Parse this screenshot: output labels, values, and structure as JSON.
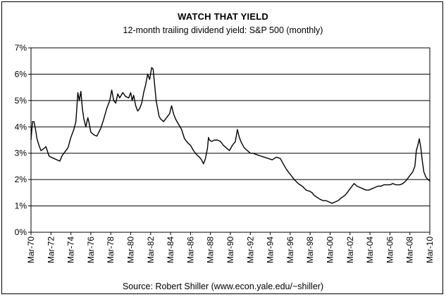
{
  "chart_data": {
    "type": "line",
    "title": "WATCH THAT YIELD",
    "subtitle": "12-month trailing dividend yield: S&P 500 (monthly)",
    "source": "Source: Robert Shiller (www.econ.yale.edu/~shiller)",
    "xlabel": "",
    "ylabel": "",
    "ylim": [
      0,
      7
    ],
    "xlim": [
      1970,
      2010
    ],
    "y_ticks": [
      {
        "value": 0,
        "label": "0%"
      },
      {
        "value": 1,
        "label": "1%"
      },
      {
        "value": 2,
        "label": "2%"
      },
      {
        "value": 3,
        "label": "3%"
      },
      {
        "value": 4,
        "label": "4%"
      },
      {
        "value": 5,
        "label": "5%"
      },
      {
        "value": 6,
        "label": "6%"
      },
      {
        "value": 7,
        "label": "7%"
      }
    ],
    "x_ticks": [
      {
        "value": 1970,
        "label": "Mar-70"
      },
      {
        "value": 1972,
        "label": "Mar-72"
      },
      {
        "value": 1974,
        "label": "Mar-74"
      },
      {
        "value": 1976,
        "label": "Mar-76"
      },
      {
        "value": 1978,
        "label": "Mar-78"
      },
      {
        "value": 1980,
        "label": "Mar-80"
      },
      {
        "value": 1982,
        "label": "Mar-82"
      },
      {
        "value": 1984,
        "label": "Mar-84"
      },
      {
        "value": 1986,
        "label": "Mar-86"
      },
      {
        "value": 1988,
        "label": "Mar-88"
      },
      {
        "value": 1990,
        "label": "Mar-90"
      },
      {
        "value": 1992,
        "label": "Mar-92"
      },
      {
        "value": 1994,
        "label": "Mar-94"
      },
      {
        "value": 1996,
        "label": "Mar-96"
      },
      {
        "value": 1998,
        "label": "Mar-98"
      },
      {
        "value": 2000,
        "label": "Mar-00"
      },
      {
        "value": 2002,
        "label": "Mar-02"
      },
      {
        "value": 2004,
        "label": "Mar-04"
      },
      {
        "value": 2006,
        "label": "Mar-06"
      },
      {
        "value": 2008,
        "label": "Mar-08"
      },
      {
        "value": 2010,
        "label": "Mar-10"
      }
    ],
    "grid": "horizontal",
    "line_color": "#000000",
    "series": [
      {
        "x": [
          1970.0,
          1970.15,
          1970.3,
          1970.45,
          1970.6,
          1970.8,
          1971.0,
          1971.2,
          1971.5,
          1971.8,
          1972.0,
          1972.3,
          1972.6,
          1972.9,
          1973.1,
          1973.4,
          1973.7,
          1974.0,
          1974.3,
          1974.5,
          1974.7,
          1974.85,
          1975.0,
          1975.15,
          1975.3,
          1975.5,
          1975.7,
          1975.85,
          1976.0,
          1976.3,
          1976.6,
          1977.0,
          1977.3,
          1977.6,
          1977.9,
          1978.1,
          1978.3,
          1978.5,
          1978.7,
          1978.9,
          1979.2,
          1979.5,
          1979.8,
          1980.0,
          1980.15,
          1980.3,
          1980.5,
          1980.7,
          1980.9,
          1981.1,
          1981.3,
          1981.5,
          1981.7,
          1981.9,
          1982.1,
          1982.25,
          1982.4,
          1982.55,
          1982.7,
          1982.85,
          1983.0,
          1983.3,
          1983.6,
          1983.9,
          1984.1,
          1984.3,
          1984.5,
          1984.8,
          1985.1,
          1985.4,
          1985.7,
          1986.0,
          1986.3,
          1986.6,
          1986.9,
          1987.1,
          1987.3,
          1987.5,
          1987.7,
          1987.8,
          1987.9,
          1988.1,
          1988.4,
          1988.7,
          1989.0,
          1989.3,
          1989.6,
          1989.9,
          1990.2,
          1990.5,
          1990.7,
          1990.9,
          1991.1,
          1991.4,
          1991.7,
          1992.0,
          1992.3,
          1992.6,
          1993.0,
          1993.4,
          1993.8,
          1994.2,
          1994.6,
          1995.0,
          1995.3,
          1995.6,
          1996.0,
          1996.4,
          1996.8,
          1997.2,
          1997.6,
          1998.0,
          1998.2,
          1998.4,
          1998.6,
          1998.8,
          1999.0,
          1999.3,
          1999.6,
          1999.9,
          2000.2,
          2000.5,
          2000.8,
          2001.1,
          2001.3,
          2001.5,
          2001.7,
          2001.9,
          2002.1,
          2002.4,
          2002.7,
          2003.0,
          2003.3,
          2003.6,
          2003.9,
          2004.2,
          2004.5,
          2004.8,
          2005.1,
          2005.4,
          2005.7,
          2006.0,
          2006.3,
          2006.6,
          2007.0,
          2007.3,
          2007.6,
          2007.9,
          2008.1,
          2008.3,
          2008.5,
          2008.65,
          2008.8,
          2008.95,
          2009.1,
          2009.25,
          2009.4,
          2009.6,
          2009.8,
          2010.0
        ],
        "values": [
          3.5,
          4.2,
          4.2,
          3.9,
          3.55,
          3.3,
          3.1,
          3.15,
          3.25,
          2.9,
          2.85,
          2.8,
          2.75,
          2.7,
          2.9,
          3.05,
          3.2,
          3.6,
          3.9,
          4.2,
          5.3,
          5.0,
          5.35,
          4.7,
          4.3,
          4.0,
          4.35,
          4.1,
          3.8,
          3.7,
          3.65,
          3.95,
          4.3,
          4.7,
          5.0,
          5.4,
          5.0,
          4.9,
          5.25,
          5.1,
          5.3,
          5.15,
          5.1,
          5.3,
          5.0,
          5.2,
          4.8,
          4.6,
          4.7,
          4.9,
          5.3,
          5.6,
          6.0,
          5.8,
          6.25,
          6.2,
          5.6,
          5.0,
          4.7,
          4.4,
          4.3,
          4.2,
          4.35,
          4.5,
          4.8,
          4.5,
          4.3,
          4.1,
          3.9,
          3.55,
          3.4,
          3.3,
          3.1,
          2.95,
          2.85,
          2.75,
          2.6,
          2.8,
          3.2,
          3.6,
          3.5,
          3.45,
          3.5,
          3.5,
          3.45,
          3.3,
          3.2,
          3.1,
          3.3,
          3.45,
          3.9,
          3.6,
          3.4,
          3.2,
          3.1,
          3.0,
          3.0,
          2.95,
          2.9,
          2.85,
          2.8,
          2.75,
          2.85,
          2.8,
          2.6,
          2.4,
          2.2,
          2.0,
          1.85,
          1.75,
          1.6,
          1.55,
          1.5,
          1.4,
          1.35,
          1.3,
          1.25,
          1.2,
          1.2,
          1.15,
          1.1,
          1.15,
          1.2,
          1.3,
          1.35,
          1.4,
          1.5,
          1.6,
          1.7,
          1.85,
          1.75,
          1.7,
          1.65,
          1.6,
          1.6,
          1.65,
          1.7,
          1.75,
          1.75,
          1.8,
          1.8,
          1.8,
          1.85,
          1.8,
          1.8,
          1.85,
          1.95,
          2.1,
          2.2,
          2.3,
          2.5,
          3.1,
          3.3,
          3.55,
          3.2,
          2.7,
          2.3,
          2.1,
          2.0,
          1.95
        ]
      }
    ]
  }
}
